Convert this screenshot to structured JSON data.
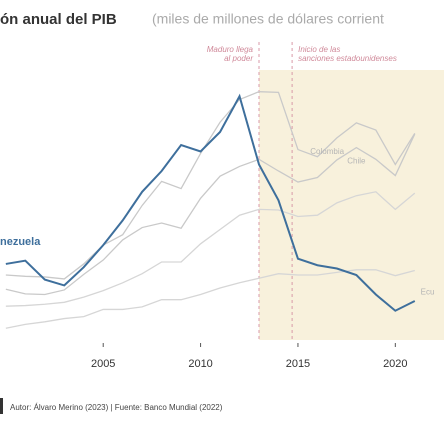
{
  "chart_data": {
    "type": "line",
    "title": "ón anual del PIB",
    "subtitle": "(miles de millones de dólares corrient",
    "x": [
      2000,
      2001,
      2002,
      2003,
      2004,
      2005,
      2006,
      2007,
      2008,
      2009,
      2010,
      2011,
      2012,
      2013,
      2014,
      2015,
      2016,
      2017,
      2018,
      2019,
      2020,
      2021
    ],
    "series": [
      {
        "name": "Colombia",
        "color": "#c9c9c9",
        "values": [
          100,
          98,
          97,
          94,
          117,
          146,
          162,
          207,
          244,
          233,
          287,
          335,
          370,
          382,
          381,
          293,
          282,
          311,
          334,
          323,
          270,
          318
        ]
      },
      {
        "name": "Chile",
        "color": "#c9c9c9",
        "values": [
          78,
          71,
          70,
          77,
          101,
          123,
          154,
          173,
          180,
          172,
          218,
          252,
          267,
          278,
          260,
          243,
          250,
          277,
          296,
          278,
          253,
          317
        ]
      },
      {
        "name": null,
        "color": "#d6d6d6",
        "values": [
          52,
          53,
          55,
          58,
          66,
          76,
          88,
          102,
          120,
          120,
          148,
          170,
          192,
          201,
          200,
          190,
          192,
          211,
          222,
          228,
          201,
          226
        ]
      },
      {
        "name": "Ecu",
        "color": "#d6d6d6",
        "values": [
          18,
          24,
          28,
          33,
          36,
          47,
          47,
          51,
          62,
          62,
          70,
          80,
          88,
          95,
          102,
          100,
          100,
          104,
          108,
          108,
          99,
          107
        ]
      },
      {
        "name": "nezuela",
        "color": "#3e6f9c",
        "values": [
          117,
          122,
          93,
          84,
          112,
          146,
          184,
          228,
          260,
          300,
          290,
          320,
          375,
          270,
          215,
          125,
          115,
          110,
          100,
          70,
          45,
          60
        ]
      }
    ],
    "xlim": [
      1999.7,
      2022.5
    ],
    "ylim": [
      0,
      400
    ],
    "xticks": [
      2005,
      2010,
      2015,
      2020
    ],
    "annotations": [
      {
        "text": "Maduro llega al poder",
        "x": 2013
      },
      {
        "text": "Inicio de las sanciones estadounidenses",
        "x": 2014.7
      }
    ],
    "shade_from": 2013,
    "footer": "Autor: Álvaro Merino (2023) | Fuente: Banco Mundial (2022)"
  }
}
